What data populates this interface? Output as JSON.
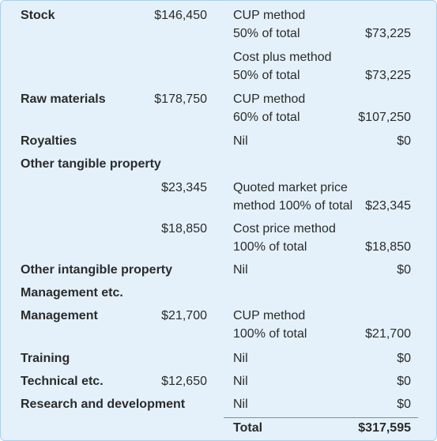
{
  "table": {
    "rows": [
      {
        "label": "Stock",
        "amount": "$146,450",
        "method": [
          "CUP method",
          "50% of total"
        ],
        "value": "$73,225"
      },
      {
        "method": [
          "Cost plus method",
          "50% of total"
        ],
        "value": "$73,225"
      },
      {
        "label": "Raw materials",
        "amount": "$178,750",
        "method": [
          "CUP method",
          "60% of total"
        ],
        "value": "$107,250"
      },
      {
        "label": "Royalties",
        "method": [
          "Nil"
        ],
        "value": "$0"
      },
      {
        "label": "Other tangible property"
      },
      {
        "amount": "$23,345",
        "method": [
          "Quoted market price",
          "method 100% of total"
        ],
        "value": "$23,345"
      },
      {
        "amount": "$18,850",
        "method": [
          "Cost price method",
          "100% of total"
        ],
        "value": "$18,850"
      },
      {
        "label": "Other intangible property",
        "method": [
          "Nil"
        ],
        "value": "$0"
      },
      {
        "label": "Management etc."
      },
      {
        "label": "Management",
        "amount": "$21,700",
        "method": [
          "CUP method",
          "100% of total"
        ],
        "value": "$21,700"
      },
      {
        "label": "Training",
        "method": [
          "Nil"
        ],
        "value": "$0"
      },
      {
        "label": "Technical etc.",
        "amount": "$12,650",
        "method": [
          "Nil"
        ],
        "value": "$0"
      },
      {
        "label": "Research and development",
        "method": [
          "Nil"
        ],
        "value": "$0"
      }
    ],
    "total": {
      "label": "Total",
      "value": "$317,595"
    }
  }
}
